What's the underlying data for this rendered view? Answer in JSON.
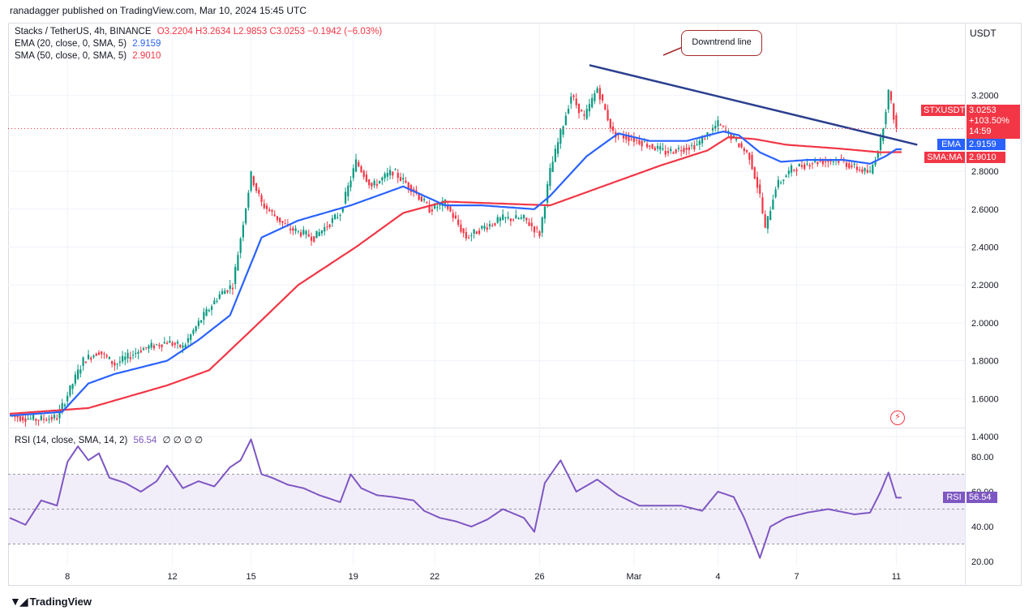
{
  "header": {
    "publisher": "ranadagger published on TradingView.com, Mar 10, 2024 15:45 UTC"
  },
  "legend": {
    "symbol": "Stacks / TetherUS, 4h, BINANCE",
    "ohlc": "O3.2204 H3.2634 L2.9853 C3.0253 −0.1942 (−6.03%)",
    "ema_label": "EMA (20, close, 0, SMA, 5)",
    "ema_value": "2.9159",
    "sma_label": "SMA (50, close, 0, SMA, 5)",
    "sma_value": "2.9010",
    "rsi_label": "RSI (14, close, SMA, 14, 2)",
    "rsi_value": "56.54",
    "rsi_extras": "∅ ∅ ∅ ∅"
  },
  "axis": {
    "unit": "USDT"
  },
  "badges": {
    "symbol": "STXUSDT",
    "price": "3.0253",
    "change": "+103.50%",
    "countdown": "14:59",
    "ema_name": "EMA",
    "ema_value": "2.9159",
    "sma_name": "SMA:MA",
    "sma_value": "2.9010",
    "rsi_name": "RSI",
    "rsi_value": "56.54"
  },
  "annotation": {
    "text": "Downtrend line"
  },
  "footer": {
    "brand": "TradingView"
  },
  "colors": {
    "up": "#089981",
    "down": "#f23645",
    "ema": "#2962ff",
    "sma": "#f23645",
    "trendline": "#2a3f8f",
    "rsi": "#7e57c2",
    "rsi_band": "#ede7f6"
  },
  "chart_data": [
    {
      "type": "candlestick",
      "title": "Stacks / TetherUS, 4h, BINANCE",
      "ylabel": "USDT",
      "ylim": [
        1.35,
        3.4
      ],
      "yticks": [
        "1.4000",
        "1.6000",
        "1.8000",
        "2.0000",
        "2.2000",
        "2.4000",
        "2.6000",
        "2.8000",
        "3.2000"
      ],
      "x_tick_labels": [
        "8",
        "12",
        "15",
        "19",
        "22",
        "26",
        "Mar",
        "4",
        "7",
        "11"
      ],
      "x_tick_index": [
        22,
        62,
        92,
        131,
        162,
        202,
        238,
        270,
        300,
        338
      ],
      "grid": true,
      "close_anchors": [
        [
          0,
          1.51
        ],
        [
          10,
          1.49
        ],
        [
          18,
          1.5
        ],
        [
          22,
          1.62
        ],
        [
          28,
          1.8
        ],
        [
          34,
          1.85
        ],
        [
          40,
          1.78
        ],
        [
          50,
          1.86
        ],
        [
          60,
          1.9
        ],
        [
          66,
          1.87
        ],
        [
          72,
          2.0
        ],
        [
          80,
          2.15
        ],
        [
          85,
          2.2
        ],
        [
          88,
          2.45
        ],
        [
          92,
          2.78
        ],
        [
          96,
          2.63
        ],
        [
          106,
          2.5
        ],
        [
          116,
          2.45
        ],
        [
          126,
          2.58
        ],
        [
          132,
          2.85
        ],
        [
          138,
          2.72
        ],
        [
          146,
          2.8
        ],
        [
          154,
          2.7
        ],
        [
          160,
          2.6
        ],
        [
          166,
          2.63
        ],
        [
          174,
          2.45
        ],
        [
          180,
          2.5
        ],
        [
          188,
          2.55
        ],
        [
          196,
          2.55
        ],
        [
          202,
          2.47
        ],
        [
          206,
          2.8
        ],
        [
          210,
          3.0
        ],
        [
          214,
          3.2
        ],
        [
          219,
          3.08
        ],
        [
          224,
          3.24
        ],
        [
          230,
          3.0
        ],
        [
          240,
          2.96
        ],
        [
          250,
          2.9
        ],
        [
          262,
          2.94
        ],
        [
          270,
          3.05
        ],
        [
          276,
          2.97
        ],
        [
          282,
          2.88
        ],
        [
          286,
          2.67
        ],
        [
          288,
          2.49
        ],
        [
          292,
          2.72
        ],
        [
          298,
          2.81
        ],
        [
          306,
          2.85
        ],
        [
          316,
          2.86
        ],
        [
          322,
          2.82
        ],
        [
          328,
          2.79
        ],
        [
          332,
          2.96
        ],
        [
          335,
          3.22
        ],
        [
          338,
          3.0253
        ]
      ],
      "ema20_anchors": [
        [
          0,
          1.51
        ],
        [
          20,
          1.53
        ],
        [
          30,
          1.68
        ],
        [
          40,
          1.73
        ],
        [
          60,
          1.8
        ],
        [
          72,
          1.91
        ],
        [
          84,
          2.04
        ],
        [
          96,
          2.45
        ],
        [
          110,
          2.54
        ],
        [
          130,
          2.62
        ],
        [
          150,
          2.72
        ],
        [
          166,
          2.62
        ],
        [
          180,
          2.62
        ],
        [
          200,
          2.6
        ],
        [
          206,
          2.67
        ],
        [
          220,
          2.88
        ],
        [
          232,
          3.0
        ],
        [
          244,
          2.96
        ],
        [
          258,
          2.96
        ],
        [
          272,
          3.01
        ],
        [
          278,
          2.99
        ],
        [
          286,
          2.9
        ],
        [
          294,
          2.85
        ],
        [
          304,
          2.86
        ],
        [
          318,
          2.86
        ],
        [
          328,
          2.84
        ],
        [
          334,
          2.88
        ],
        [
          338,
          2.9159
        ]
      ],
      "sma50_anchors": [
        [
          0,
          1.52
        ],
        [
          30,
          1.55
        ],
        [
          60,
          1.67
        ],
        [
          76,
          1.75
        ],
        [
          92,
          1.96
        ],
        [
          110,
          2.2
        ],
        [
          132,
          2.4
        ],
        [
          150,
          2.58
        ],
        [
          166,
          2.64
        ],
        [
          186,
          2.63
        ],
        [
          206,
          2.62
        ],
        [
          226,
          2.72
        ],
        [
          248,
          2.83
        ],
        [
          266,
          2.91
        ],
        [
          274,
          2.98
        ],
        [
          284,
          2.97
        ],
        [
          296,
          2.94
        ],
        [
          316,
          2.92
        ],
        [
          332,
          2.9
        ],
        [
          338,
          2.901
        ]
      ],
      "trendline": {
        "from": [
          221,
          3.36
        ],
        "to": [
          346,
          2.94
        ]
      },
      "last_price": 3.0253
    },
    {
      "type": "line",
      "title": "RSI (14, close, SMA, 14, 2)",
      "ylim": [
        15,
        92
      ],
      "yticks": [
        "20.00",
        "40.00",
        "60.00",
        "80.00"
      ],
      "bands": {
        "upper": 70,
        "lower": 30,
        "middle": 50
      },
      "rsi_anchors": [
        [
          0,
          45
        ],
        [
          6,
          41
        ],
        [
          12,
          55
        ],
        [
          18,
          52
        ],
        [
          22,
          77
        ],
        [
          26,
          86
        ],
        [
          30,
          78
        ],
        [
          34,
          82
        ],
        [
          38,
          68
        ],
        [
          44,
          65
        ],
        [
          50,
          60
        ],
        [
          56,
          66
        ],
        [
          60,
          75
        ],
        [
          66,
          62
        ],
        [
          72,
          66
        ],
        [
          78,
          63
        ],
        [
          84,
          74
        ],
        [
          88,
          78
        ],
        [
          92,
          90
        ],
        [
          96,
          70
        ],
        [
          100,
          68
        ],
        [
          106,
          64
        ],
        [
          112,
          62
        ],
        [
          118,
          58
        ],
        [
          122,
          56
        ],
        [
          126,
          54
        ],
        [
          130,
          70
        ],
        [
          134,
          62
        ],
        [
          140,
          58
        ],
        [
          146,
          57
        ],
        [
          154,
          55
        ],
        [
          158,
          49
        ],
        [
          164,
          45
        ],
        [
          170,
          43
        ],
        [
          176,
          40
        ],
        [
          182,
          44
        ],
        [
          188,
          50
        ],
        [
          196,
          45
        ],
        [
          200,
          37
        ],
        [
          204,
          65
        ],
        [
          210,
          78
        ],
        [
          216,
          60
        ],
        [
          224,
          67
        ],
        [
          232,
          58
        ],
        [
          240,
          52
        ],
        [
          248,
          52
        ],
        [
          256,
          52
        ],
        [
          264,
          49
        ],
        [
          270,
          60
        ],
        [
          276,
          57
        ],
        [
          280,
          45
        ],
        [
          284,
          30
        ],
        [
          286,
          22
        ],
        [
          290,
          40
        ],
        [
          296,
          45
        ],
        [
          304,
          48
        ],
        [
          312,
          50
        ],
        [
          322,
          47
        ],
        [
          328,
          48
        ],
        [
          332,
          60
        ],
        [
          335,
          71
        ],
        [
          338,
          56.54
        ]
      ],
      "last_value": 56.54
    }
  ]
}
